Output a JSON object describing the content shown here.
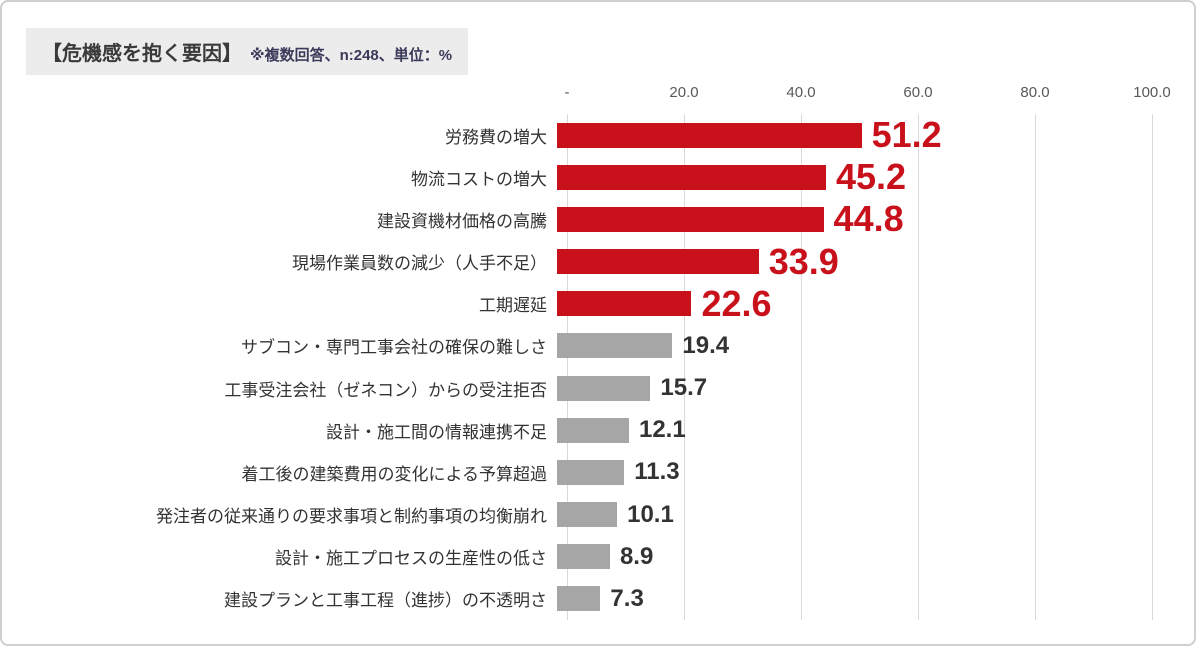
{
  "title": {
    "main": "【危機感を抱く要因】",
    "note": "※複数回答、n:248、単位：%"
  },
  "chart_data": {
    "type": "bar",
    "orientation": "horizontal",
    "title": "危機感を抱く要因",
    "subtitle": "複数回答、n:248、単位：%",
    "categories": [
      "労務費の増大",
      "物流コストの増大",
      "建設資機材価格の高騰",
      "現場作業員数の減少（人手不足）",
      "工期遅延",
      "サブコン・専門工事会社の確保の難しさ",
      "工事受注会社（ゼネコン）からの受注拒否",
      "設計・施工間の情報連携不足",
      "着工後の建築費用の変化による予算超過",
      "発注者の従来通りの要求事項と制約事項の均衡崩れ",
      "設計・施工プロセスの生産性の低さ",
      "建設プランと工事工程（進捗）の不透明さ"
    ],
    "values": [
      51.2,
      45.2,
      44.8,
      33.9,
      22.6,
      19.4,
      15.7,
      12.1,
      11.3,
      10.1,
      8.9,
      7.3
    ],
    "highlight_count": 5,
    "colors": {
      "highlight_bar": "#c9111c",
      "normal_bar": "#a6a6a6",
      "highlight_value": "#c9111c",
      "normal_value": "#333333"
    },
    "x_ticks": [
      "-",
      "20.0",
      "40.0",
      "60.0",
      "80.0",
      "100.0"
    ],
    "xlim": [
      0,
      100
    ],
    "grid": true,
    "legend": null
  }
}
